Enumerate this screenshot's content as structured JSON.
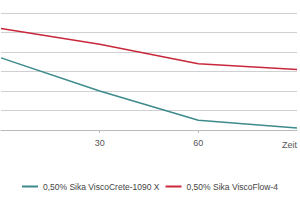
{
  "chart_data": {
    "type": "line",
    "x_label": "Zeit",
    "x": [
      0,
      30,
      60,
      90
    ],
    "series": [
      {
        "name": "0,50% Sika ViscoCrete-1090 X",
        "color": "#3d8a8c",
        "values": [
          37,
          20,
          5,
          1
        ]
      },
      {
        "name": "0,50% Sika ViscoFlow-4",
        "color": "#c8283a",
        "values": [
          52,
          44,
          34,
          31
        ]
      }
    ],
    "xlim": [
      0,
      90
    ],
    "xticks": [
      30,
      60
    ],
    "ylim": [
      0,
      60
    ],
    "yticks": [
      0,
      10,
      20,
      30,
      40,
      50,
      60
    ],
    "grid": true,
    "legend": "bottom",
    "tick_labels": "x",
    "marker": "none"
  }
}
